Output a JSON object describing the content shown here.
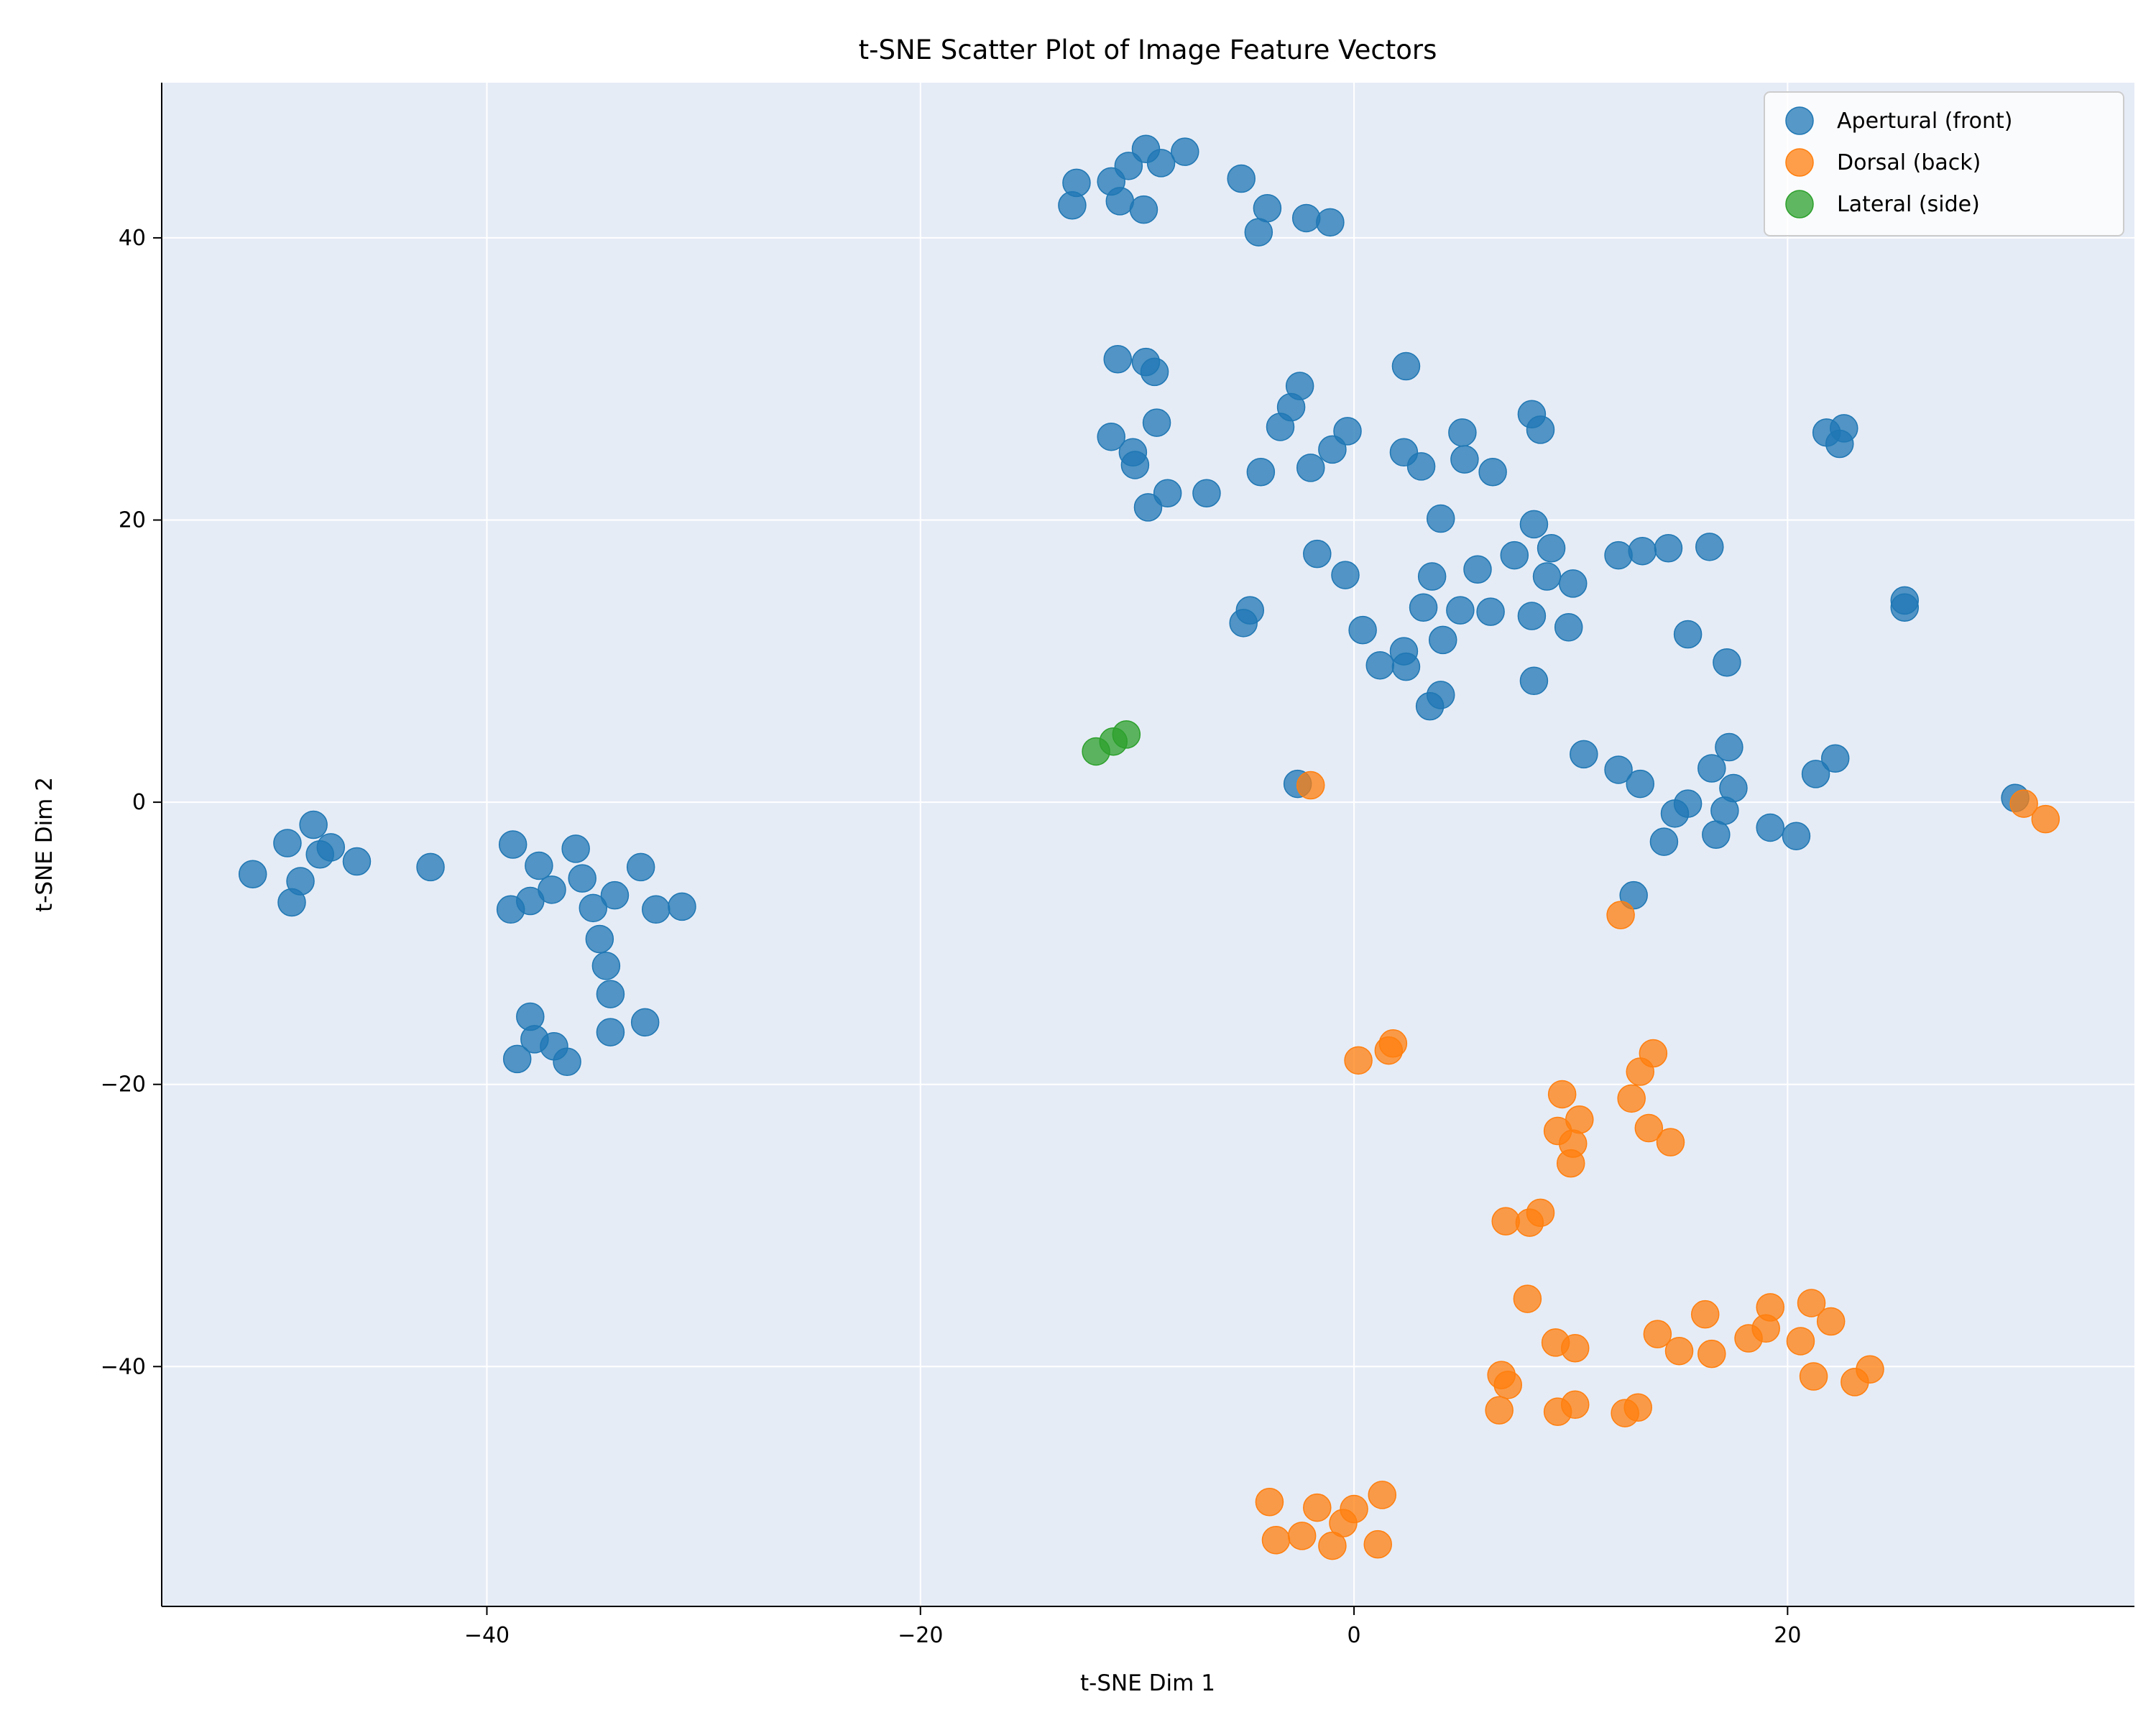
{
  "chart_data": {
    "type": "scatter",
    "title": "t-SNE Scatter Plot of Image Feature Vectors",
    "xlabel": "t-SNE Dim 1",
    "ylabel": "t-SNE Dim 2",
    "xlim": [
      -55,
      36
    ],
    "ylim": [
      -57,
      51
    ],
    "xticks": [
      -40,
      -20,
      0,
      20
    ],
    "yticks": [
      -40,
      -20,
      0,
      20,
      40
    ],
    "grid": true,
    "legend_position": "top-right",
    "background_color": "#e6ecf6",
    "series": [
      {
        "name": "Apertural (front)",
        "color": "#1f77b4",
        "points": [
          [
            -13.0,
            42.3
          ],
          [
            -12.8,
            43.9
          ],
          [
            -11.2,
            44.0
          ],
          [
            -10.8,
            42.6
          ],
          [
            -10.4,
            45.1
          ],
          [
            -9.6,
            46.3
          ],
          [
            -9.7,
            42.0
          ],
          [
            -8.9,
            45.3
          ],
          [
            -7.8,
            46.1
          ],
          [
            -5.2,
            44.2
          ],
          [
            -4.0,
            42.1
          ],
          [
            -4.4,
            40.4
          ],
          [
            -2.2,
            41.4
          ],
          [
            -1.1,
            41.1
          ],
          [
            -10.9,
            31.4
          ],
          [
            -9.6,
            31.2
          ],
          [
            -9.2,
            30.5
          ],
          [
            -11.2,
            25.9
          ],
          [
            -10.2,
            24.8
          ],
          [
            -10.1,
            23.9
          ],
          [
            -9.1,
            26.9
          ],
          [
            -9.5,
            20.9
          ],
          [
            -8.6,
            21.9
          ],
          [
            -6.8,
            21.9
          ],
          [
            -4.3,
            23.4
          ],
          [
            -3.4,
            26.6
          ],
          [
            -2.9,
            28.0
          ],
          [
            -2.5,
            29.5
          ],
          [
            -2.0,
            23.7
          ],
          [
            -1.0,
            25.0
          ],
          [
            -0.3,
            26.3
          ],
          [
            2.4,
            30.9
          ],
          [
            2.3,
            24.8
          ],
          [
            3.1,
            23.8
          ],
          [
            5.0,
            26.2
          ],
          [
            5.1,
            24.3
          ],
          [
            6.4,
            23.4
          ],
          [
            8.2,
            27.5
          ],
          [
            8.6,
            26.4
          ],
          [
            -1.7,
            17.6
          ],
          [
            -0.4,
            16.1
          ],
          [
            0.4,
            12.2
          ],
          [
            1.2,
            9.7
          ],
          [
            2.3,
            10.7
          ],
          [
            2.4,
            9.6
          ],
          [
            3.2,
            13.8
          ],
          [
            3.6,
            16.0
          ],
          [
            4.0,
            20.1
          ],
          [
            4.1,
            11.5
          ],
          [
            4.9,
            13.6
          ],
          [
            5.7,
            16.5
          ],
          [
            6.3,
            13.5
          ],
          [
            7.4,
            17.5
          ],
          [
            8.3,
            19.7
          ],
          [
            8.2,
            13.2
          ],
          [
            8.9,
            16.0
          ],
          [
            9.1,
            18.0
          ],
          [
            9.9,
            12.4
          ],
          [
            10.1,
            15.5
          ],
          [
            12.2,
            17.5
          ],
          [
            13.3,
            17.8
          ],
          [
            14.5,
            18.0
          ],
          [
            16.4,
            18.1
          ],
          [
            15.4,
            11.9
          ],
          [
            17.2,
            9.9
          ],
          [
            3.5,
            6.8
          ],
          [
            4.0,
            7.6
          ],
          [
            8.3,
            8.6
          ],
          [
            -5.1,
            12.7
          ],
          [
            -4.8,
            13.6
          ],
          [
            21.8,
            26.2
          ],
          [
            22.6,
            26.5
          ],
          [
            22.4,
            25.4
          ],
          [
            25.4,
            14.3
          ],
          [
            25.4,
            13.8
          ],
          [
            10.6,
            3.4
          ],
          [
            12.2,
            2.3
          ],
          [
            13.2,
            1.3
          ],
          [
            12.9,
            -6.6
          ],
          [
            14.3,
            -2.8
          ],
          [
            14.8,
            -0.8
          ],
          [
            15.4,
            -0.1
          ],
          [
            16.5,
            2.4
          ],
          [
            16.7,
            -2.3
          ],
          [
            17.1,
            -0.6
          ],
          [
            17.3,
            3.9
          ],
          [
            17.5,
            1.0
          ],
          [
            19.2,
            -1.8
          ],
          [
            20.4,
            -2.4
          ],
          [
            21.3,
            2.0
          ],
          [
            22.2,
            3.1
          ],
          [
            30.5,
            0.3
          ],
          [
            -2.6,
            1.3
          ],
          [
            -50.8,
            -5.1
          ],
          [
            -49.2,
            -2.9
          ],
          [
            -49.0,
            -7.1
          ],
          [
            -48.6,
            -5.6
          ],
          [
            -48.0,
            -1.6
          ],
          [
            -47.7,
            -3.7
          ],
          [
            -47.2,
            -3.2
          ],
          [
            -46.0,
            -4.2
          ],
          [
            -42.6,
            -4.6
          ],
          [
            -38.8,
            -3.0
          ],
          [
            -38.9,
            -7.6
          ],
          [
            -38.0,
            -7.0
          ],
          [
            -37.6,
            -4.5
          ],
          [
            -37.0,
            -6.2
          ],
          [
            -35.9,
            -3.3
          ],
          [
            -35.6,
            -5.4
          ],
          [
            -35.1,
            -7.5
          ],
          [
            -34.1,
            -6.6
          ],
          [
            -32.9,
            -4.6
          ],
          [
            -32.2,
            -7.6
          ],
          [
            -31.0,
            -7.4
          ],
          [
            -34.8,
            -9.7
          ],
          [
            -34.5,
            -11.6
          ],
          [
            -34.3,
            -13.6
          ],
          [
            -34.3,
            -16.3
          ],
          [
            -32.7,
            -15.6
          ],
          [
            -38.0,
            -15.2
          ],
          [
            -37.8,
            -16.8
          ],
          [
            -38.6,
            -18.2
          ],
          [
            -36.9,
            -17.3
          ],
          [
            -36.3,
            -18.4
          ]
        ]
      },
      {
        "name": "Dorsal (back)",
        "color": "#ff7f0e",
        "points": [
          [
            30.9,
            -0.1
          ],
          [
            31.9,
            -1.2
          ],
          [
            -2.0,
            1.2
          ],
          [
            12.3,
            -8.0
          ],
          [
            0.2,
            -18.3
          ],
          [
            1.6,
            -17.6
          ],
          [
            1.8,
            -17.1
          ],
          [
            9.6,
            -20.7
          ],
          [
            9.4,
            -23.3
          ],
          [
            10.1,
            -24.2
          ],
          [
            10.4,
            -22.5
          ],
          [
            10.0,
            -25.6
          ],
          [
            12.8,
            -21.0
          ],
          [
            13.2,
            -19.1
          ],
          [
            13.8,
            -17.8
          ],
          [
            13.6,
            -23.1
          ],
          [
            14.6,
            -24.1
          ],
          [
            7.0,
            -29.7
          ],
          [
            8.1,
            -29.8
          ],
          [
            8.6,
            -29.1
          ],
          [
            8.0,
            -35.2
          ],
          [
            9.3,
            -38.3
          ],
          [
            10.2,
            -38.7
          ],
          [
            6.8,
            -40.6
          ],
          [
            7.1,
            -41.3
          ],
          [
            6.7,
            -43.1
          ],
          [
            9.4,
            -43.2
          ],
          [
            10.2,
            -42.7
          ],
          [
            12.5,
            -43.3
          ],
          [
            13.1,
            -42.9
          ],
          [
            14.0,
            -37.7
          ],
          [
            15.0,
            -38.9
          ],
          [
            16.2,
            -36.3
          ],
          [
            16.5,
            -39.1
          ],
          [
            18.2,
            -38.0
          ],
          [
            19.0,
            -37.3
          ],
          [
            19.2,
            -35.8
          ],
          [
            20.6,
            -38.2
          ],
          [
            21.1,
            -35.5
          ],
          [
            21.2,
            -40.7
          ],
          [
            22.0,
            -36.8
          ],
          [
            23.1,
            -41.1
          ],
          [
            23.8,
            -40.2
          ],
          [
            -3.9,
            -49.6
          ],
          [
            -3.6,
            -52.3
          ],
          [
            -2.4,
            -52.0
          ],
          [
            -1.7,
            -50.0
          ],
          [
            -1.0,
            -52.7
          ],
          [
            -0.5,
            -51.1
          ],
          [
            0.0,
            -50.1
          ],
          [
            1.1,
            -52.6
          ],
          [
            1.3,
            -49.1
          ]
        ]
      },
      {
        "name": "Lateral (side)",
        "color": "#2ca02c",
        "points": [
          [
            -11.9,
            3.6
          ],
          [
            -11.1,
            4.3
          ],
          [
            -10.5,
            4.8
          ]
        ]
      }
    ]
  }
}
